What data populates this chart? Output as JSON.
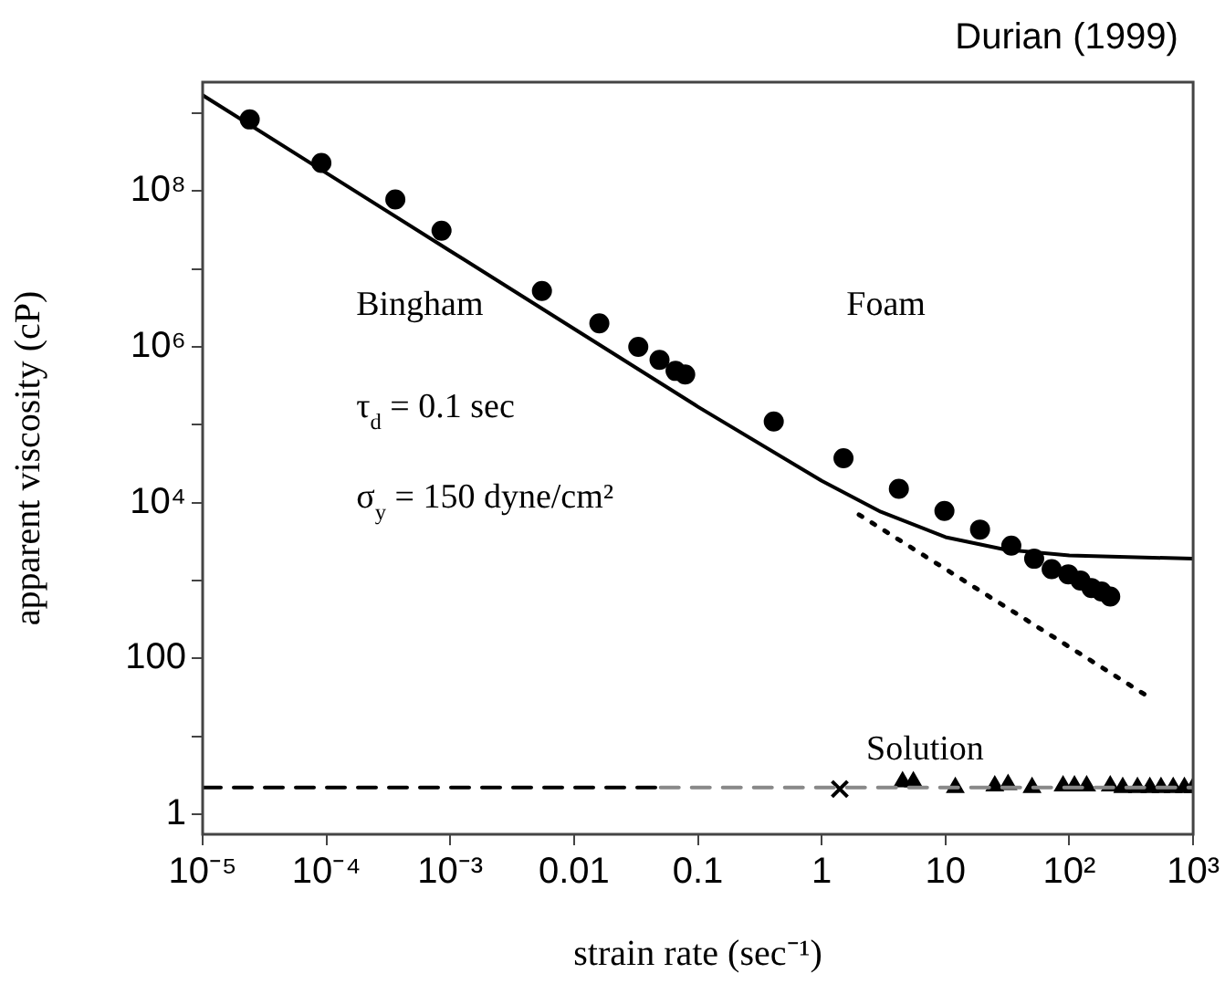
{
  "chart_data": {
    "type": "scatter",
    "xlabel": "strain rate (sec⁻¹)",
    "ylabel": "apparent viscosity (cP)",
    "log": "xy",
    "grid": false,
    "legend": false,
    "xlim": [
      1e-05,
      1000
    ],
    "ylim": [
      0.55,
      2500000000.0
    ],
    "xticks": [
      {
        "value": 1e-05,
        "label": "10⁻⁵"
      },
      {
        "value": 0.0001,
        "label": "10⁻⁴"
      },
      {
        "value": 0.001,
        "label": "10⁻³"
      },
      0.01,
      0.1,
      1,
      10,
      {
        "value": 100,
        "label": "10²"
      },
      {
        "value": 1000,
        "label": "10³"
      }
    ],
    "yticks": [
      1,
      {
        "value": 10,
        "label": null
      },
      100,
      {
        "value": 1000,
        "label": null
      },
      {
        "value": 10000,
        "label": "10⁴"
      },
      {
        "value": 100000,
        "label": null
      },
      {
        "value": 1000000,
        "label": "10⁶"
      },
      {
        "value": 10000000,
        "label": null
      },
      {
        "value": 100000000,
        "label": "10⁸"
      },
      {
        "value": 1000000000,
        "label": null
      }
    ],
    "annotations": [
      "Durian (1999)",
      "Bingham",
      "τ$_{d}$ = 0.1 sec",
      "σ$_{y}$ = 150 dyne/cm²",
      "Foam",
      "Solution"
    ],
    "series": [
      {
        "type": "line",
        "color": "#000000",
        "marker": "none",
        "line_style": "solid",
        "x": [
          1e-05,
          0.0001,
          0.001,
          0.01,
          0.1,
          1,
          3,
          10,
          30,
          100,
          1000
        ],
        "values": [
          1700000000.0,
          170000000.0,
          17000000.0,
          1700000.0,
          170000.0,
          19000,
          7600,
          3600,
          2500,
          2100,
          1900
        ]
      },
      {
        "type": "line",
        "color": "#000000",
        "marker": "none",
        "line_style": "dotted",
        "x": [
          2,
          10,
          100,
          450
        ],
        "values": [
          7000,
          1400,
          140,
          31
        ]
      },
      {
        "type": "line",
        "color": "#000000",
        "marker": "none",
        "line_style": "dashed",
        "x": [
          1e-05,
          0.05
        ],
        "values": [
          2.2,
          2.2
        ]
      },
      {
        "type": "line",
        "color": "#888888",
        "marker": "none",
        "line_style": "dashed",
        "x": [
          0.05,
          1000
        ],
        "values": [
          2.2,
          2.2
        ]
      },
      {
        "color": "#000000",
        "marker": "circle",
        "x": [
          2.4e-05,
          9.1e-05,
          0.00036,
          0.00085,
          0.0055,
          0.016,
          0.033,
          0.049,
          0.066,
          0.079,
          0.41,
          1.5,
          4.2,
          9.8,
          19,
          34,
          52,
          72,
          98,
          123,
          151,
          182,
          214
        ],
        "values": [
          830000000.0,
          230000000.0,
          78000000.0,
          31000000.0,
          5200000.0,
          2000000.0,
          1000000.0,
          680000.0,
          490000.0,
          440000.0,
          110000.0,
          37000,
          15000,
          7800,
          4500,
          2800,
          1900,
          1400,
          1200,
          1000,
          800,
          720,
          620
        ]
      },
      {
        "color": "#000000",
        "marker": "cross",
        "x": [
          1.4
        ],
        "values": [
          2.1
        ]
      },
      {
        "color": "#000000",
        "marker": "triangle",
        "x": [
          4.5,
          5.5,
          12,
          25,
          32,
          50,
          89,
          110,
          138,
          214,
          270,
          355,
          447,
          550,
          690,
          850,
          1000
        ],
        "values": [
          2.6,
          2.6,
          2.2,
          2.3,
          2.4,
          2.2,
          2.3,
          2.3,
          2.3,
          2.3,
          2.2,
          2.2,
          2.2,
          2.2,
          2.2,
          2.2,
          2.2
        ]
      }
    ]
  }
}
